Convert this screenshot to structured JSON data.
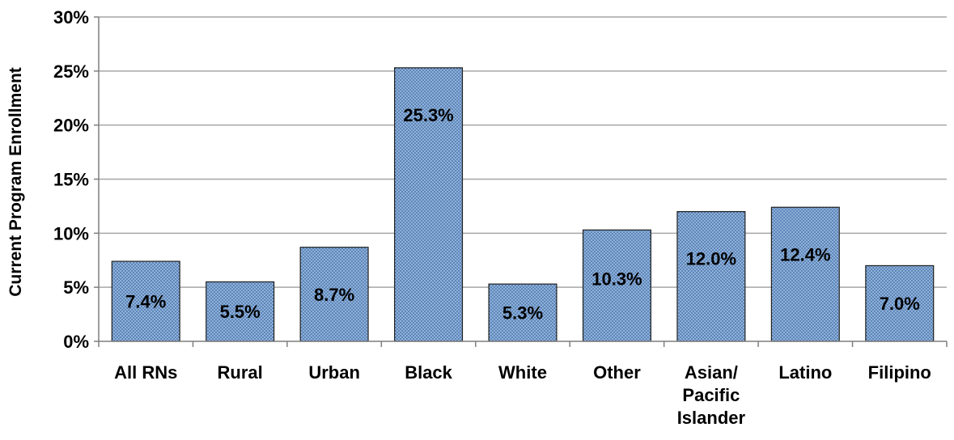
{
  "chart_data": {
    "type": "bar",
    "title": "",
    "xlabel": "",
    "ylabel": "Current Program Enrollment",
    "ylim": [
      0,
      30
    ],
    "y_ticks": [
      "0%",
      "5%",
      "10%",
      "15%",
      "20%",
      "25%",
      "30%"
    ],
    "y_tick_values": [
      0,
      5,
      10,
      15,
      20,
      25,
      30
    ],
    "categories": [
      [
        "All RNs"
      ],
      [
        "Rural"
      ],
      [
        "Urban"
      ],
      [
        "Black"
      ],
      [
        "White"
      ],
      [
        "Other"
      ],
      [
        "Asian/",
        "Pacific",
        "Islander"
      ],
      [
        "Latino"
      ],
      [
        "Filipino"
      ]
    ],
    "values": [
      7.4,
      5.5,
      8.7,
      25.3,
      5.3,
      10.3,
      12.0,
      12.4,
      7.0
    ],
    "data_labels": [
      "7.4%",
      "5.5%",
      "8.7%",
      "25.3%",
      "5.3%",
      "10.3%",
      "12.0%",
      "12.4%",
      "7.0%"
    ],
    "grid": true,
    "legend": "none",
    "bar_fill": "#8fb1d9",
    "bar_pattern_dot": "#3a67a3",
    "bar_stroke": "#1f1f1f",
    "gridline_color": "#a6a6a6"
  }
}
